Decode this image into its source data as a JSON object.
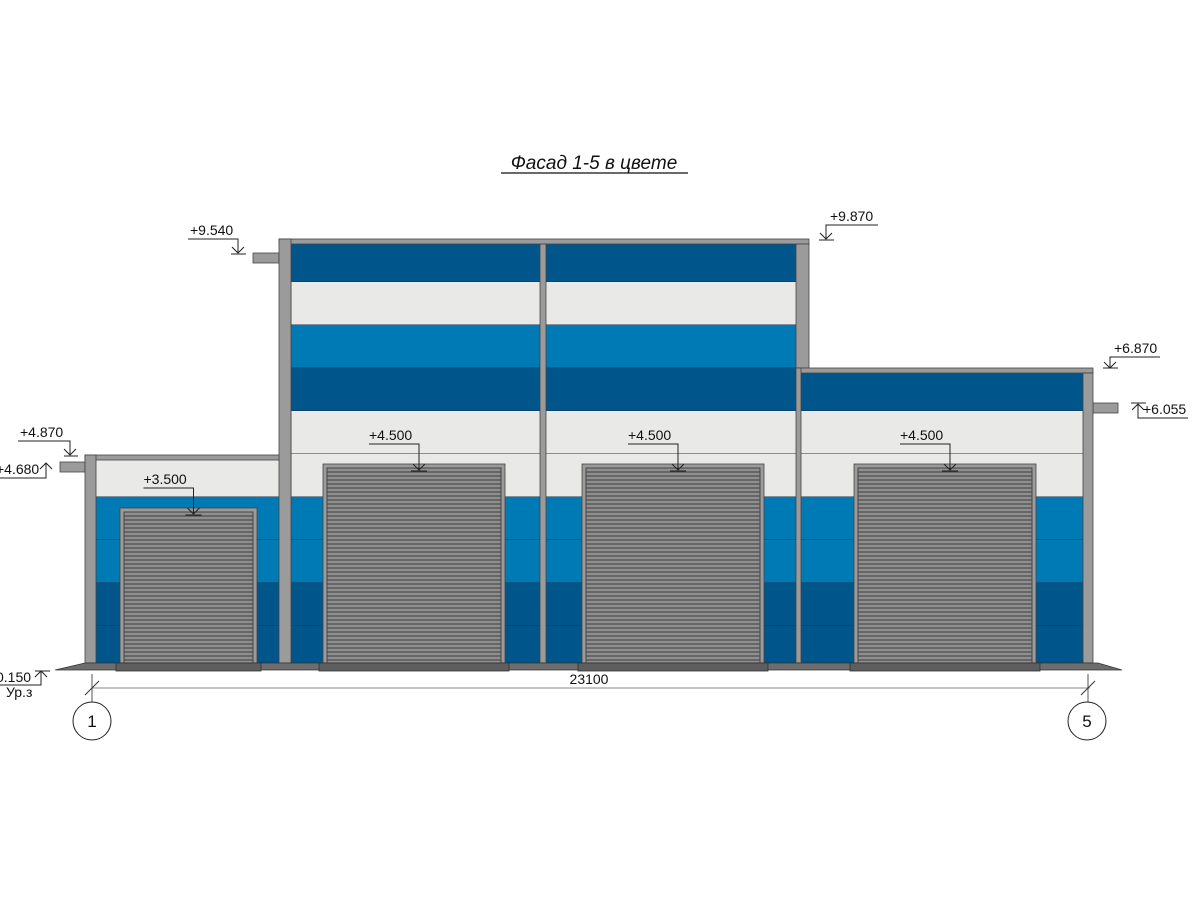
{
  "title": "Фасад 1-5 в цвете",
  "colors": {
    "dark_blue": "#00558a",
    "mid_blue": "#007ab5",
    "light_panel": "#e9eae7",
    "structure_gray": "#9b9b9b",
    "door_gray": "#8f8f8f"
  },
  "elevations": {
    "left_roof": "+4.870",
    "left_canopy": "+4.680",
    "center_roof_left": "+9.540",
    "center_roof_right": "+9.870",
    "right_roof": "+6.870",
    "right_canopy": "+6.055",
    "ground": "0.150",
    "ground_label": "Ур.з"
  },
  "doors": [
    {
      "name": "door-1",
      "top_mark": "+3.500"
    },
    {
      "name": "door-2",
      "top_mark": "+4.500"
    },
    {
      "name": "door-3",
      "top_mark": "+4.500"
    },
    {
      "name": "door-4",
      "top_mark": "+4.500"
    }
  ],
  "dimension": "23100",
  "axes": [
    "1",
    "5"
  ]
}
